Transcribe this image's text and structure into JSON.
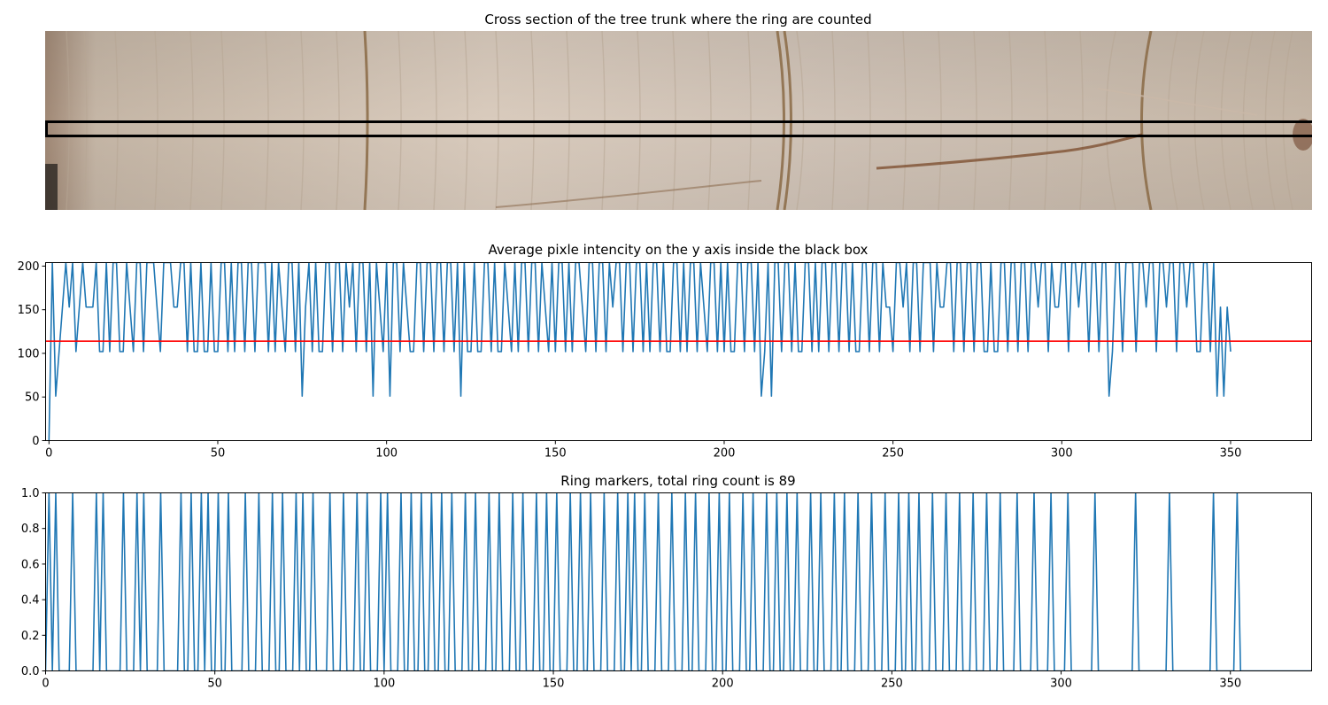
{
  "chart_data": [
    {
      "type": "image",
      "title": "Cross section of the tree trunk where the ring are counted",
      "colors": {
        "wood_light": "#d9cbbd",
        "wood_mid": "#c5b6a6",
        "wood_shadow": "#9b8470",
        "ring_dark": "#8a6a45",
        "box": "#000000"
      }
    },
    {
      "type": "line",
      "title": "Average pixle intencity on the y axis inside the black box",
      "xlabel": "",
      "ylabel": "",
      "xlim": [
        -1,
        374
      ],
      "ylim": [
        0,
        204
      ],
      "x_ticks": [
        0,
        50,
        100,
        150,
        200,
        250,
        300,
        350
      ],
      "y_ticks": [
        0,
        50,
        100,
        150,
        200
      ],
      "threshold": 114,
      "colors": {
        "line": "#1f77b4",
        "threshold": "#ff0000"
      },
      "values": [
        0,
        204,
        51,
        102,
        153,
        204,
        153,
        204,
        102,
        153,
        204,
        153,
        153,
        153,
        204,
        102,
        102,
        204,
        102,
        204,
        204,
        102,
        102,
        204,
        153,
        102,
        204,
        204,
        102,
        204,
        204,
        204,
        153,
        102,
        204,
        204,
        204,
        153,
        153,
        204,
        204,
        102,
        204,
        102,
        102,
        204,
        102,
        102,
        204,
        102,
        102,
        204,
        204,
        102,
        204,
        102,
        204,
        204,
        102,
        204,
        204,
        102,
        204,
        204,
        204,
        102,
        204,
        102,
        204,
        153,
        102,
        204,
        204,
        102,
        204,
        51,
        153,
        204,
        102,
        204,
        102,
        102,
        204,
        204,
        102,
        204,
        204,
        102,
        204,
        153,
        204,
        102,
        204,
        204,
        102,
        204,
        51,
        204,
        153,
        102,
        204,
        51,
        204,
        204,
        102,
        204,
        153,
        102,
        102,
        204,
        204,
        102,
        204,
        204,
        102,
        204,
        204,
        102,
        204,
        204,
        102,
        204,
        51,
        204,
        102,
        102,
        204,
        102,
        102,
        204,
        204,
        102,
        204,
        102,
        102,
        204,
        153,
        102,
        204,
        102,
        204,
        204,
        102,
        204,
        204,
        102,
        204,
        153,
        102,
        204,
        102,
        204,
        204,
        102,
        204,
        102,
        204,
        204,
        153,
        102,
        204,
        204,
        102,
        204,
        204,
        102,
        204,
        153,
        204,
        204,
        102,
        204,
        204,
        102,
        204,
        204,
        102,
        204,
        102,
        204,
        204,
        102,
        204,
        102,
        102,
        204,
        204,
        102,
        204,
        102,
        204,
        204,
        102,
        204,
        153,
        102,
        204,
        204,
        102,
        204,
        102,
        204,
        102,
        102,
        204,
        204,
        102,
        204,
        204,
        102,
        204,
        51,
        102,
        204,
        51,
        204,
        204,
        102,
        204,
        204,
        102,
        204,
        102,
        102,
        204,
        204,
        102,
        204,
        102,
        204,
        204,
        102,
        204,
        204,
        102,
        204,
        204,
        102,
        204,
        102,
        102,
        204,
        204,
        102,
        204,
        204,
        102,
        204,
        153,
        153,
        102,
        204,
        204,
        153,
        204,
        102,
        204,
        204,
        102,
        204,
        204,
        204,
        102,
        204,
        153,
        153,
        204,
        204,
        102,
        204,
        204,
        102,
        204,
        204,
        102,
        204,
        204,
        102,
        102,
        204,
        102,
        102,
        204,
        204,
        102,
        204,
        204,
        102,
        204,
        204,
        102,
        204,
        204,
        153,
        204,
        204,
        102,
        204,
        153,
        153,
        204,
        204,
        102,
        204,
        204,
        153,
        204,
        204,
        102,
        204,
        204,
        102,
        204,
        204,
        51,
        102,
        204,
        204,
        102,
        204,
        204,
        204,
        102,
        204,
        204,
        153,
        204,
        204,
        102,
        204,
        204,
        153,
        204,
        204,
        102,
        204,
        204,
        153,
        204,
        204,
        102,
        102,
        204,
        204,
        102,
        204,
        51,
        153,
        51,
        153,
        102
      ]
    },
    {
      "type": "line",
      "title": "Ring markers, total ring count is 89",
      "xlabel": "",
      "ylabel": "",
      "xlim": [
        0,
        374
      ],
      "ylim": [
        0,
        1
      ],
      "x_ticks": [
        0,
        50,
        100,
        150,
        200,
        250,
        300,
        350
      ],
      "y_ticks": [
        "0.0",
        "0.2",
        "0.4",
        "0.6",
        "0.8",
        "1.0"
      ],
      "colors": {
        "line": "#1f77b4"
      },
      "ring_positions": [
        1,
        3,
        8,
        15,
        17,
        23,
        27,
        29,
        34,
        40,
        43,
        46,
        48,
        51,
        54,
        59,
        63,
        67,
        70,
        74,
        76,
        79,
        84,
        88,
        92,
        95,
        99,
        101,
        105,
        108,
        111,
        114,
        117,
        120,
        124,
        127,
        131,
        134,
        138,
        141,
        145,
        148,
        151,
        155,
        158,
        161,
        165,
        169,
        172,
        174,
        177,
        181,
        185,
        189,
        192,
        196,
        199,
        202,
        206,
        209,
        213,
        216,
        219,
        222,
        226,
        229,
        233,
        236,
        240,
        244,
        248,
        252,
        255,
        258,
        262,
        266,
        270,
        274,
        278,
        282,
        287,
        292,
        297,
        302,
        310,
        322,
        332,
        345,
        352
      ]
    }
  ]
}
